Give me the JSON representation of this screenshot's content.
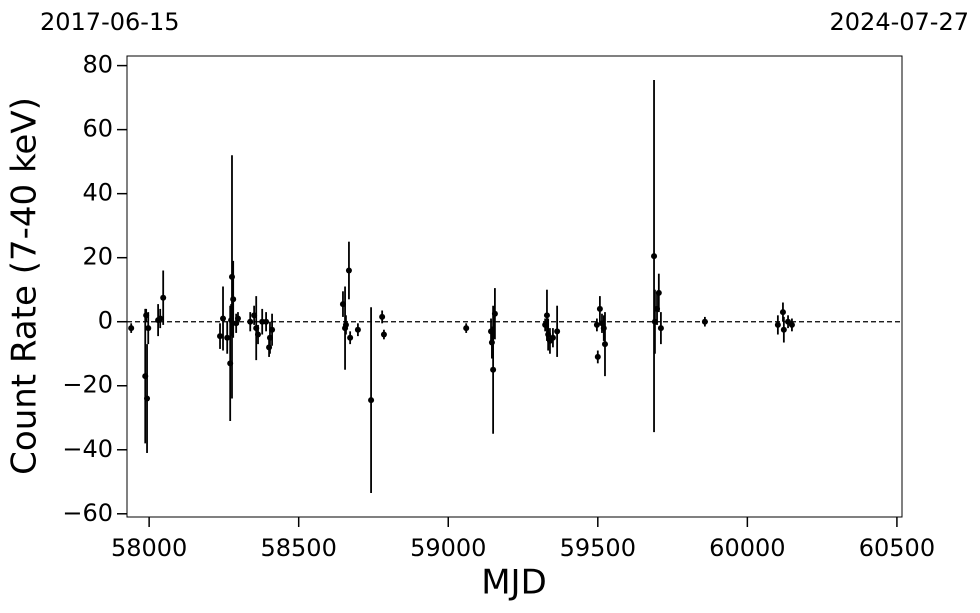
{
  "chart_data": {
    "type": "errorbar",
    "top_labels": [
      "2017-06-15",
      "2024-07-27"
    ],
    "x_label": "MJD",
    "y_label": "Count Rate (7-40 keV)",
    "color": "#000000",
    "reference_line": 0,
    "xlim": [
      57926,
      60517
    ],
    "ylim": [
      -61,
      83
    ],
    "xticks": [
      58000,
      58500,
      59000,
      59500,
      60000,
      60500
    ],
    "yticks": [
      {
        "value": -60,
        "label": "−60"
      },
      {
        "value": -40,
        "label": "−40"
      },
      {
        "value": -20,
        "label": "−20"
      },
      0,
      20,
      40,
      60,
      80
    ],
    "x": [
      57940,
      57987,
      57993,
      57990,
      57997,
      58030,
      58037,
      58047,
      58237,
      58247,
      58261,
      58271,
      58277,
      58281,
      58274,
      58291,
      58297,
      58338,
      58351,
      58358,
      58364,
      58378,
      58391,
      58401,
      58404,
      58411,
      58648,
      58655,
      58658,
      58668,
      58672,
      58698,
      58742,
      58779,
      58785,
      59060,
      59143,
      59146,
      59150,
      59156,
      59324,
      59330,
      59334,
      59340,
      59350,
      59364,
      59497,
      59500,
      59507,
      59514,
      59520,
      59524,
      59688,
      59691,
      59698,
      59704,
      59711,
      59858,
      60102,
      60119,
      60122,
      60136,
      60149
    ],
    "values": [
      -2,
      -17,
      -24,
      2,
      -2,
      0.5,
      1,
      7.5,
      -4.5,
      1,
      -5,
      -13,
      14,
      7,
      0.5,
      -0.5,
      1,
      0,
      2,
      -2,
      -4,
      0,
      0,
      -8,
      -5,
      -2.5,
      5.5,
      -2,
      -1,
      16,
      -5,
      -2.5,
      -24.5,
      1.5,
      -4,
      -2,
      -3,
      -6.5,
      -15,
      2.5,
      -1,
      2,
      -4,
      -6,
      -5,
      -3,
      -1,
      -11,
      4,
      -0.5,
      -2,
      -7,
      20.5,
      0,
      4,
      9,
      -2,
      0,
      -1,
      3,
      -2.5,
      0,
      -1
    ],
    "errors": [
      1.5,
      21,
      17,
      2,
      5,
      5,
      3,
      8.5,
      4,
      10,
      5,
      18,
      38,
      12,
      5,
      3,
      2,
      3,
      3,
      10,
      3,
      4,
      3,
      3,
      5,
      5,
      4,
      13,
      3,
      9,
      2,
      2,
      29,
      2,
      1.5,
      1.5,
      4,
      5,
      20,
      8,
      2,
      8,
      5,
      4,
      3,
      8,
      2,
      2,
      4,
      3,
      4,
      10,
      55,
      10,
      5,
      6,
      5,
      1.5,
      3,
      3,
      4,
      2,
      2
    ]
  }
}
